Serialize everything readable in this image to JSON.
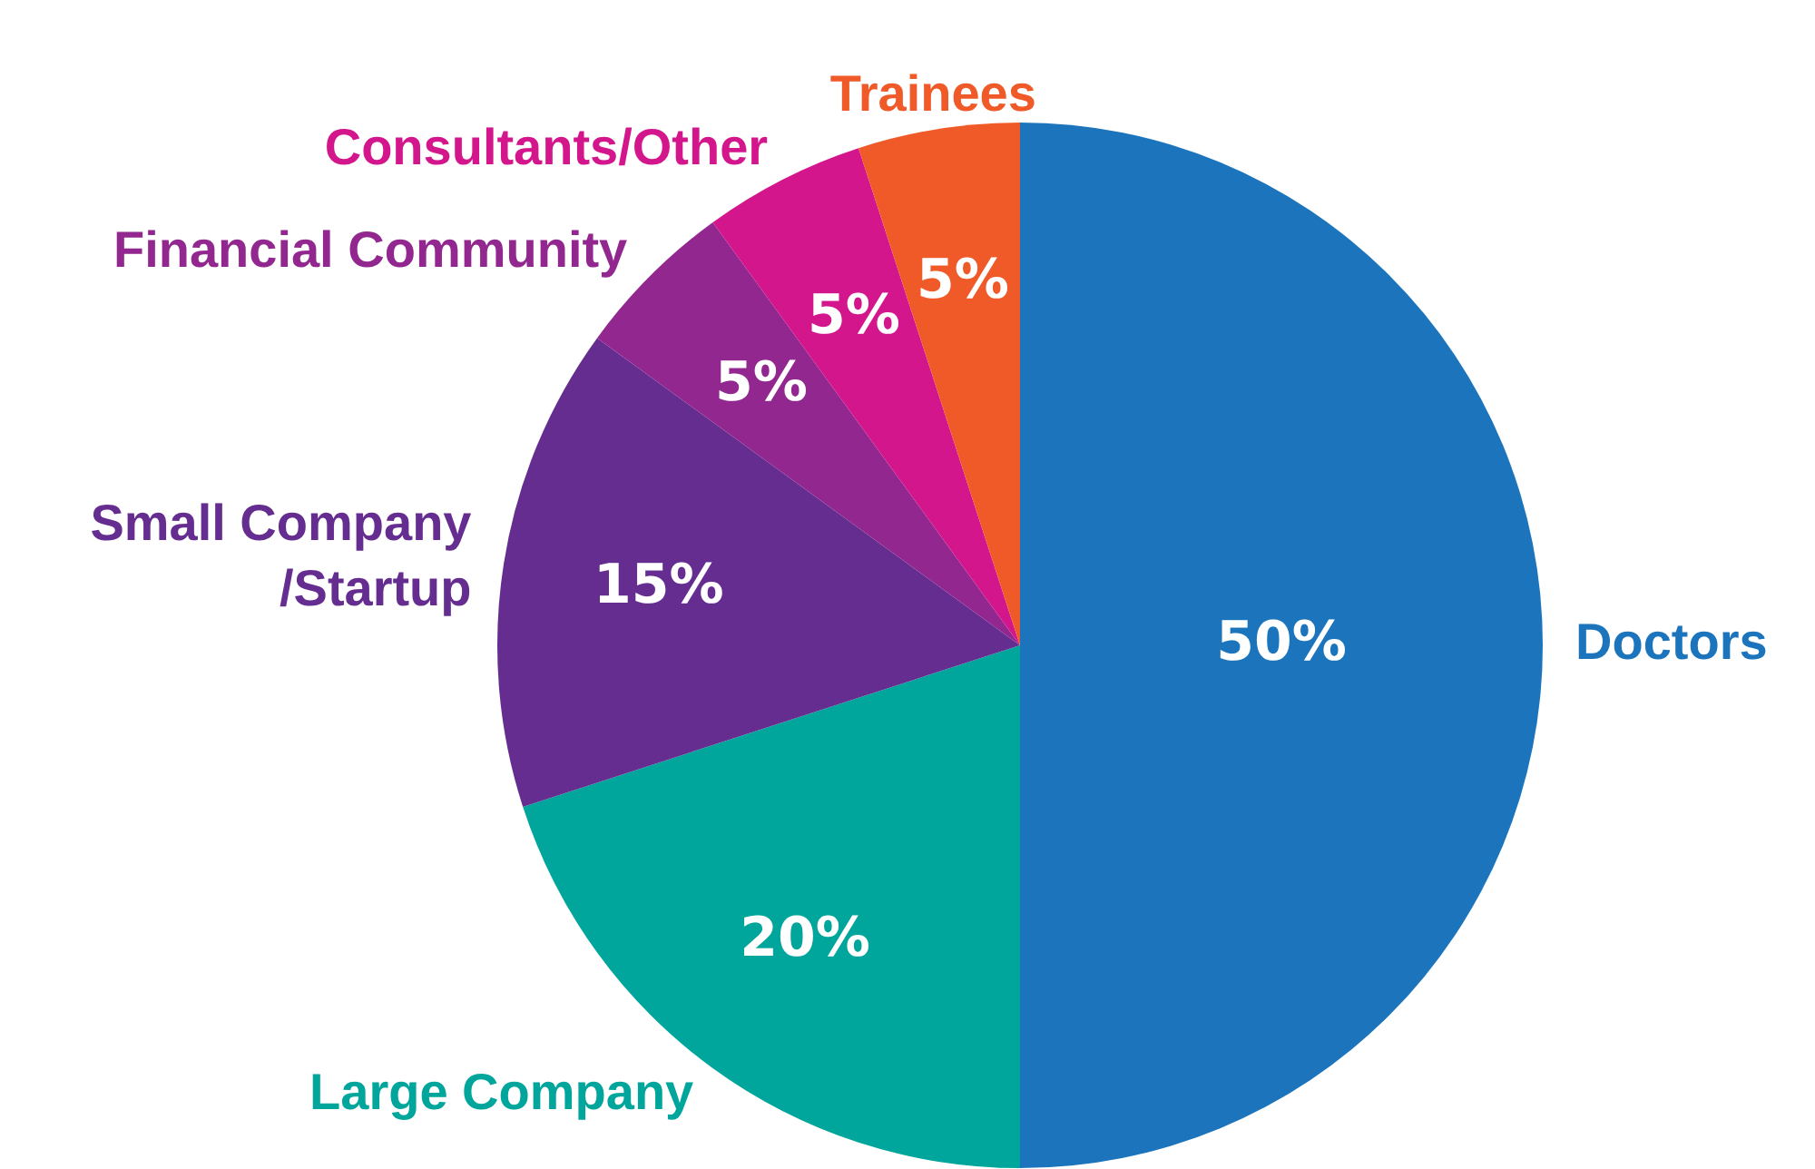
{
  "chart_data": {
    "type": "pie",
    "categories": [
      "Doctors",
      "Large Company",
      "Small Company\n/Startup",
      "Financial Community",
      "Consultants/Other",
      "Trainees"
    ],
    "values": [
      50,
      20,
      15,
      5,
      5,
      5
    ],
    "value_labels": [
      "50%",
      "20%",
      "15%",
      "5%",
      "5%",
      "5%"
    ],
    "colors": [
      "#1c75bc",
      "#00a59b",
      "#662d91",
      "#92278f",
      "#d4168c",
      "#f05a28"
    ],
    "legend": false
  }
}
